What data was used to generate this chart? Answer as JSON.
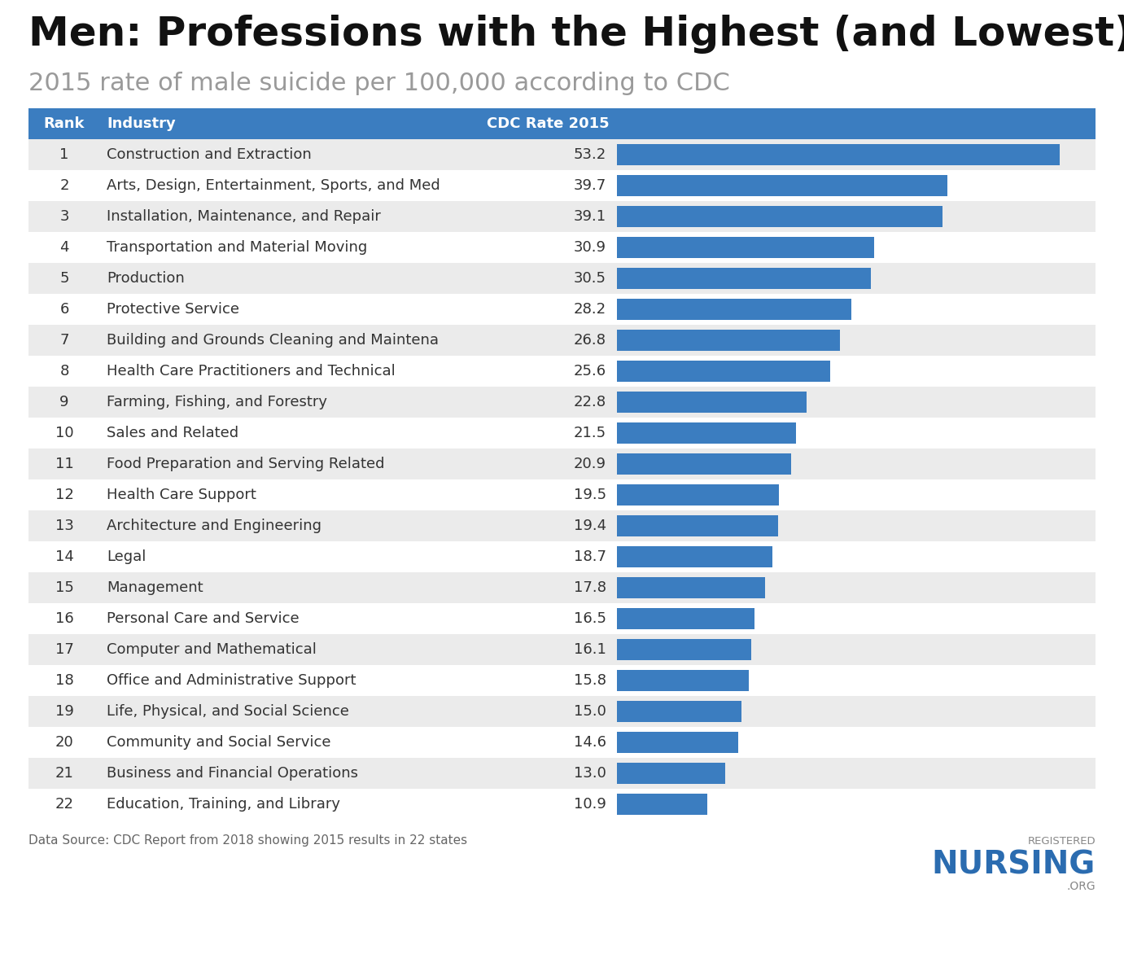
{
  "title": "Men: Professions with the Highest (and Lowest) Suicide Rates",
  "subtitle": "2015 rate of male suicide per 100,000 according to CDC",
  "header_bg_color": "#3B7DC0",
  "header_text_color": "#FFFFFF",
  "col_rank": "Rank",
  "col_industry": "Industry",
  "col_rate": "CDC Rate 2015",
  "ranks": [
    1,
    2,
    3,
    4,
    5,
    6,
    7,
    8,
    9,
    10,
    11,
    12,
    13,
    14,
    15,
    16,
    17,
    18,
    19,
    20,
    21,
    22
  ],
  "industries": [
    "Construction and Extraction",
    "Arts, Design, Entertainment, Sports, and Med",
    "Installation, Maintenance, and Repair",
    "Transportation and Material Moving",
    "Production",
    "Protective Service",
    "Building and Grounds Cleaning and Maintena",
    "Health Care Practitioners and Technical",
    "Farming, Fishing, and Forestry",
    "Sales and Related",
    "Food Preparation and Serving Related",
    "Health Care Support",
    "Architecture and Engineering",
    "Legal",
    "Management",
    "Personal Care and Service",
    "Computer and Mathematical",
    "Office and Administrative Support",
    "Life, Physical, and Social Science",
    "Community and Social Service",
    "Business and Financial Operations",
    "Education, Training, and Library"
  ],
  "rates": [
    53.2,
    39.7,
    39.1,
    30.9,
    30.5,
    28.2,
    26.8,
    25.6,
    22.8,
    21.5,
    20.9,
    19.5,
    19.4,
    18.7,
    17.8,
    16.5,
    16.1,
    15.8,
    15.0,
    14.6,
    13.0,
    10.9
  ],
  "bar_color": "#3B7DC0",
  "row_even_color": "#FFFFFF",
  "row_odd_color": "#EBEBEB",
  "bar_max": 57,
  "footer_text": "Data Source: CDC Report from 2018 showing 2015 results in 22 states",
  "background_color": "#FFFFFF",
  "title_fontsize": 36,
  "subtitle_fontsize": 22,
  "table_fontsize": 13
}
